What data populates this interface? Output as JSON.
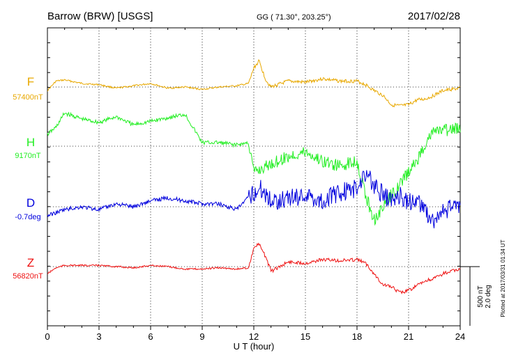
{
  "header": {
    "station": "Barrow (BRW)  [USGS]",
    "coords": "GG ( 71.30°, 203.25°)",
    "date": "2017/02/28"
  },
  "footer": {
    "plotted": "Plotted at 2017/03/31 01:34 UT"
  },
  "chart_data": {
    "type": "line",
    "title": "Barrow (BRW)  [USGS]",
    "xlabel": "U T (hour)",
    "xlim": [
      0,
      24
    ],
    "xticks": [
      0,
      3,
      6,
      9,
      12,
      15,
      18,
      21,
      24
    ],
    "grid": true,
    "scale_bar": {
      "label_nt": "500 nT",
      "label_deg": "2.0 deg"
    },
    "series": [
      {
        "name": "F",
        "baseline_label": "57400nT",
        "color": "#e8a800",
        "unit": "nT",
        "x": [
          0,
          0.5,
          1,
          2,
          3,
          4,
          5,
          6,
          7,
          8,
          9,
          10,
          11,
          11.7,
          12,
          12.3,
          12.7,
          13,
          14,
          15,
          16,
          17,
          18,
          18.5,
          19,
          19.5,
          20,
          20.5,
          21,
          21.5,
          22,
          22.5,
          23,
          24
        ],
        "values": [
          57370,
          57450,
          57460,
          57430,
          57420,
          57390,
          57410,
          57430,
          57390,
          57400,
          57380,
          57400,
          57410,
          57430,
          57560,
          57620,
          57460,
          57400,
          57450,
          57440,
          57470,
          57450,
          57450,
          57420,
          57370,
          57330,
          57250,
          57240,
          57250,
          57290,
          57300,
          57330,
          57370,
          57390
        ]
      },
      {
        "name": "H",
        "baseline_label": "9170nT",
        "color": "#22ee22",
        "unit": "nT",
        "x": [
          0,
          0.5,
          1,
          2,
          3,
          4,
          5,
          6,
          7,
          8,
          9,
          10,
          11,
          11.7,
          12,
          12.5,
          13,
          14,
          15,
          16,
          17,
          18,
          18.5,
          19,
          19.5,
          20,
          20.5,
          21,
          21.5,
          22,
          22.5,
          23,
          24
        ],
        "values": [
          9270,
          9330,
          9450,
          9400,
          9370,
          9420,
          9350,
          9380,
          9410,
          9440,
          9200,
          9200,
          9180,
          9200,
          8950,
          8980,
          9020,
          9080,
          9120,
          9040,
          9000,
          9050,
          8750,
          8550,
          8650,
          8760,
          8850,
          8950,
          9050,
          9200,
          9300,
          9300,
          9320
        ]
      },
      {
        "name": "D",
        "baseline_label": "-0.7deg",
        "color": "#0000dd",
        "unit": "deg",
        "x": [
          0,
          0.5,
          1,
          2,
          3,
          4,
          5,
          6,
          7,
          8,
          9,
          10,
          11,
          11.5,
          12,
          12.5,
          13,
          14,
          15,
          16,
          17,
          18,
          18.5,
          19,
          19.5,
          20,
          20.5,
          21,
          21.5,
          22,
          22.5,
          23,
          24
        ],
        "values": [
          -1.0,
          -0.9,
          -0.8,
          -0.7,
          -0.8,
          -0.6,
          -0.7,
          -0.5,
          -0.4,
          -0.5,
          -0.6,
          -0.6,
          -0.8,
          -0.5,
          -0.2,
          -0.1,
          -0.5,
          -0.4,
          -0.3,
          -0.5,
          -0.2,
          -0.1,
          0.5,
          0.0,
          -0.3,
          -0.5,
          -0.3,
          -0.6,
          -0.4,
          -0.9,
          -1.2,
          -0.9,
          -0.6
        ]
      },
      {
        "name": "Z",
        "baseline_label": "56820nT",
        "color": "#ee1111",
        "unit": "nT",
        "x": [
          0,
          0.5,
          1,
          2,
          3,
          4,
          5,
          6,
          7,
          8,
          9,
          10,
          11,
          11.7,
          12,
          12.3,
          12.7,
          13,
          14,
          15,
          16,
          17,
          18,
          18.5,
          19,
          19.5,
          20,
          20.5,
          21,
          21.5,
          22,
          22.5,
          23,
          24
        ],
        "values": [
          56760,
          56810,
          56830,
          56830,
          56830,
          56820,
          56810,
          56830,
          56820,
          56800,
          56800,
          56810,
          56800,
          56810,
          56980,
          57010,
          56900,
          56780,
          56860,
          56850,
          56880,
          56870,
          56880,
          56850,
          56760,
          56670,
          56650,
          56600,
          56620,
          56660,
          56700,
          56720,
          56760,
          56800
        ]
      }
    ]
  }
}
